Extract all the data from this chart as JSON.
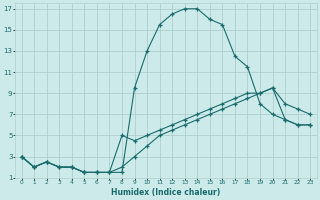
{
  "xlabel": "Humidex (Indice chaleur)",
  "bg_color": "#cdeaea",
  "grid_color": "#aecece",
  "line_color": "#1a6b6b",
  "xlim": [
    -0.5,
    23.5
  ],
  "ylim": [
    1,
    17.5
  ],
  "xticks": [
    0,
    1,
    2,
    3,
    4,
    5,
    6,
    7,
    8,
    9,
    10,
    11,
    12,
    13,
    14,
    15,
    16,
    17,
    18,
    19,
    20,
    21,
    22,
    23
  ],
  "yticks": [
    1,
    3,
    5,
    7,
    9,
    11,
    13,
    15,
    17
  ],
  "line1_x": [
    0,
    1,
    2,
    3,
    4,
    5,
    6,
    7,
    8,
    9,
    10,
    11,
    12,
    13,
    14,
    15,
    16,
    17,
    18,
    19,
    20,
    21,
    22,
    23
  ],
  "line1_y": [
    3,
    2,
    2.5,
    2,
    2,
    1.5,
    1.5,
    1.5,
    1.5,
    9.5,
    13,
    15.5,
    16.5,
    17,
    17,
    16,
    15.5,
    12.5,
    11.5,
    8,
    7,
    6.5,
    6,
    6
  ],
  "line2_x": [
    0,
    1,
    2,
    3,
    4,
    5,
    6,
    7,
    8,
    9,
    10,
    11,
    12,
    13,
    14,
    15,
    16,
    17,
    18,
    19,
    20,
    21,
    22,
    23
  ],
  "line2_y": [
    3,
    2,
    2.5,
    2,
    2,
    1.5,
    1.5,
    1.5,
    5,
    4.5,
    5,
    5.5,
    6,
    6.5,
    7,
    7.5,
    8,
    8.5,
    9,
    9,
    9.5,
    8,
    7.5,
    7
  ],
  "line3_x": [
    0,
    1,
    2,
    3,
    4,
    5,
    6,
    7,
    8,
    9,
    10,
    11,
    12,
    13,
    14,
    15,
    16,
    17,
    18,
    19,
    20,
    21,
    22,
    23
  ],
  "line3_y": [
    3,
    2,
    2.5,
    2,
    2,
    1.5,
    1.5,
    1.5,
    2,
    3,
    4,
    5,
    5.5,
    6,
    6.5,
    7,
    7.5,
    8,
    8.5,
    9,
    9.5,
    6.5,
    6,
    6
  ]
}
